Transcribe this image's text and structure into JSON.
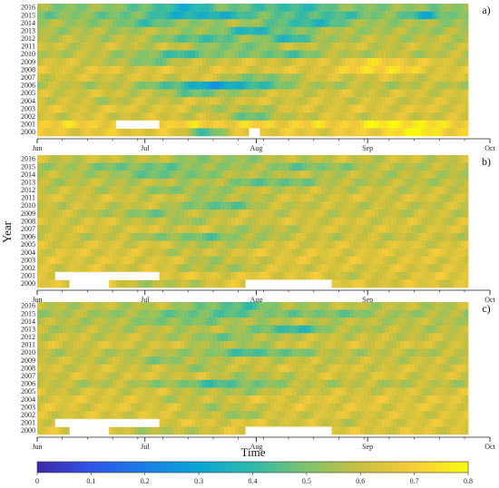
{
  "chart_data": {
    "type": "heatmap",
    "xlabel": "Time",
    "ylabel": "Year",
    "months": [
      "Jun",
      "Jul",
      "Aug",
      "Sep",
      "Oct"
    ],
    "years": [
      "2016",
      "2015",
      "2014",
      "2013",
      "2012",
      "2011",
      "2010",
      "2009",
      "2008",
      "2007",
      "2006",
      "2005",
      "2004",
      "2003",
      "2002",
      "2001",
      "2000"
    ],
    "colorbar": {
      "min": 0,
      "max": 0.8,
      "ticks": [
        "0",
        "0.1",
        "0.2",
        "0.3",
        "0.4",
        "0.5",
        "0.6",
        "0.7",
        "0.8"
      ],
      "colors": [
        "#3e26a8",
        "#2f54e8",
        "#1a7fe6",
        "#0aa6d6",
        "#2fb9a9",
        "#7fc36c",
        "#c9bf3e",
        "#f7cc3a",
        "#f9fb0e"
      ]
    },
    "panels": [
      {
        "label": "a)",
        "missing": [
          {
            "year": "2001",
            "from": "Jun 23",
            "to": "Jul 04"
          },
          {
            "year": "2000",
            "from": "Jul 30",
            "to": "Aug 01"
          }
        ],
        "rows": [
          {
            "year": "2016",
            "base": 0.52,
            "lows": [
              [
                40,
                0.36,
                10
              ],
              [
                70,
                0.4,
                12
              ]
            ]
          },
          {
            "year": "2015",
            "base": 0.5,
            "lows": [
              [
                45,
                0.34,
                14
              ],
              [
                80,
                0.42,
                10
              ],
              [
                108,
                0.33,
                4
              ]
            ]
          },
          {
            "year": "2014",
            "base": 0.55,
            "lows": [
              [
                30,
                0.45,
                10
              ],
              [
                75,
                0.38,
                10
              ]
            ]
          },
          {
            "year": "2013",
            "base": 0.56,
            "lows": [
              [
                60,
                0.38,
                10
              ]
            ]
          },
          {
            "year": "2012",
            "base": 0.58,
            "lows": [
              [
                45,
                0.42,
                10
              ],
              [
                70,
                0.4,
                8
              ]
            ]
          },
          {
            "year": "2011",
            "base": 0.6,
            "lows": [
              [
                55,
                0.48,
                10
              ]
            ]
          },
          {
            "year": "2010",
            "base": 0.58,
            "lows": [
              [
                40,
                0.43,
                12
              ],
              [
                68,
                0.45,
                10
              ]
            ]
          },
          {
            "year": "2009",
            "base": 0.62,
            "lows": [
              [
                30,
                0.5,
                10
              ],
              [
                95,
                0.7,
                12
              ]
            ]
          },
          {
            "year": "2008",
            "base": 0.64,
            "lows": [
              [
                95,
                0.74,
                10
              ]
            ]
          },
          {
            "year": "2007",
            "base": 0.62,
            "lows": [
              [
                62,
                0.48,
                8
              ]
            ]
          },
          {
            "year": "2006",
            "base": 0.58,
            "lows": [
              [
                50,
                0.3,
                16
              ]
            ]
          },
          {
            "year": "2005",
            "base": 0.62,
            "lows": [
              [
                45,
                0.48,
                12
              ]
            ]
          },
          {
            "year": "2004",
            "base": 0.62,
            "lows": [
              [
                20,
                0.58,
                10
              ]
            ]
          },
          {
            "year": "2003",
            "base": 0.64,
            "lows": [
              [
                55,
                0.55,
                12
              ]
            ]
          },
          {
            "year": "2002",
            "base": 0.62,
            "lows": [
              [
                60,
                0.48,
                8
              ]
            ]
          },
          {
            "year": "2001",
            "base": 0.7,
            "lows": [
              [
                100,
                0.78,
                10
              ]
            ]
          },
          {
            "year": "2000",
            "base": 0.66,
            "lows": [
              [
                47,
                0.45,
                6
              ],
              [
                105,
                0.78,
                10
              ]
            ]
          }
        ]
      },
      {
        "label": "b)",
        "missing": [
          {
            "year": "2001",
            "from": "Jun 06",
            "to": "Jul 04"
          },
          {
            "year": "2000",
            "from": "Jun 10",
            "to": "Jun 20"
          },
          {
            "year": "2000",
            "from": "Jul 29",
            "to": "Aug 21"
          }
        ],
        "rows": [
          {
            "year": "2016",
            "base": 0.6,
            "lows": [
              [
                50,
                0.52,
                15
              ]
            ]
          },
          {
            "year": "2015",
            "base": 0.58,
            "lows": [
              [
                30,
                0.48,
                20
              ],
              [
                75,
                0.48,
                12
              ]
            ]
          },
          {
            "year": "2014",
            "base": 0.58,
            "lows": [
              [
                35,
                0.48,
                15
              ]
            ]
          },
          {
            "year": "2013",
            "base": 0.58,
            "lows": [
              [
                65,
                0.46,
                12
              ]
            ]
          },
          {
            "year": "2012",
            "base": 0.6,
            "lows": [
              [
                40,
                0.52,
                15
              ]
            ]
          },
          {
            "year": "2011",
            "base": 0.62,
            "lows": [
              [
                50,
                0.55,
                12
              ]
            ]
          },
          {
            "year": "2010",
            "base": 0.6,
            "lows": [
              [
                50,
                0.45,
                10
              ]
            ]
          },
          {
            "year": "2009",
            "base": 0.6,
            "lows": [
              [
                30,
                0.5,
                10
              ]
            ]
          },
          {
            "year": "2008",
            "base": 0.62,
            "lows": [
              [
                40,
                0.55,
                10
              ]
            ]
          },
          {
            "year": "2007",
            "base": 0.62,
            "lows": [
              [
                60,
                0.55,
                10
              ]
            ]
          },
          {
            "year": "2006",
            "base": 0.6,
            "lows": [
              [
                45,
                0.48,
                15
              ]
            ]
          },
          {
            "year": "2005",
            "base": 0.63,
            "lows": [
              [
                50,
                0.56,
                12
              ]
            ]
          },
          {
            "year": "2004",
            "base": 0.64,
            "lows": [
              [
                40,
                0.58,
                10
              ]
            ]
          },
          {
            "year": "2003",
            "base": 0.64,
            "lows": [
              [
                50,
                0.56,
                10
              ]
            ]
          },
          {
            "year": "2002",
            "base": 0.63,
            "lows": [
              [
                50,
                0.55,
                10
              ]
            ]
          },
          {
            "year": "2001",
            "base": 0.65,
            "lows": [
              [
                90,
                0.6,
                10
              ]
            ]
          },
          {
            "year": "2000",
            "base": 0.64,
            "lows": [
              [
                35,
                0.56,
                10
              ]
            ]
          }
        ]
      },
      {
        "label": "c)",
        "missing": [
          {
            "year": "2001",
            "from": "Jun 06",
            "to": "Jul 04"
          },
          {
            "year": "2000",
            "from": "Jun 10",
            "to": "Jun 20"
          },
          {
            "year": "2000",
            "from": "Jul 29",
            "to": "Aug 21"
          }
        ],
        "rows": [
          {
            "year": "2016",
            "base": 0.58,
            "lows": [
              [
                55,
                0.44,
                12
              ]
            ]
          },
          {
            "year": "2015",
            "base": 0.56,
            "lows": [
              [
                50,
                0.46,
                20
              ],
              [
                80,
                0.48,
                12
              ]
            ]
          },
          {
            "year": "2014",
            "base": 0.58,
            "lows": [
              [
                40,
                0.5,
                15
              ]
            ]
          },
          {
            "year": "2013",
            "base": 0.58,
            "lows": [
              [
                70,
                0.4,
                10
              ]
            ]
          },
          {
            "year": "2012",
            "base": 0.6,
            "lows": [
              [
                50,
                0.5,
                12
              ]
            ]
          },
          {
            "year": "2011",
            "base": 0.62,
            "lows": [
              [
                55,
                0.55,
                12
              ]
            ]
          },
          {
            "year": "2010",
            "base": 0.58,
            "lows": [
              [
                60,
                0.44,
                15
              ]
            ]
          },
          {
            "year": "2009",
            "base": 0.6,
            "lows": [
              [
                35,
                0.52,
                10
              ]
            ]
          },
          {
            "year": "2008",
            "base": 0.62,
            "lows": [
              [
                45,
                0.55,
                10
              ]
            ]
          },
          {
            "year": "2007",
            "base": 0.62,
            "lows": [
              [
                60,
                0.55,
                10
              ]
            ]
          },
          {
            "year": "2006",
            "base": 0.58,
            "lows": [
              [
                50,
                0.44,
                15
              ]
            ]
          },
          {
            "year": "2005",
            "base": 0.62,
            "lows": [
              [
                55,
                0.55,
                12
              ]
            ]
          },
          {
            "year": "2004",
            "base": 0.64,
            "lows": [
              [
                40,
                0.58,
                10
              ]
            ]
          },
          {
            "year": "2003",
            "base": 0.64,
            "lows": [
              [
                50,
                0.56,
                10
              ]
            ]
          },
          {
            "year": "2002",
            "base": 0.63,
            "lows": [
              [
                55,
                0.55,
                10
              ]
            ]
          },
          {
            "year": "2001",
            "base": 0.64,
            "lows": [
              [
                85,
                0.6,
                10
              ]
            ]
          },
          {
            "year": "2000",
            "base": 0.64,
            "lows": [
              [
                35,
                0.56,
                10
              ]
            ]
          }
        ]
      }
    ]
  }
}
